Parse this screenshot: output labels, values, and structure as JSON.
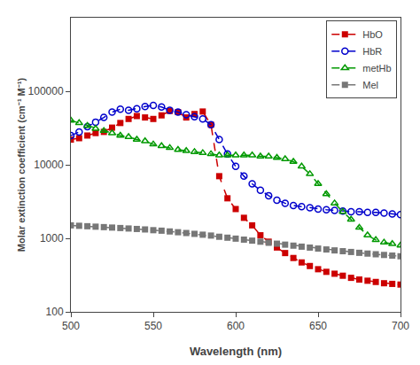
{
  "chart_data": {
    "type": "line",
    "xlabel": "Wavelength (nm)",
    "ylabel": "Molar extinction coefficient (cm⁻¹ M⁻¹)",
    "x": [
      500,
      505,
      510,
      515,
      520,
      525,
      530,
      535,
      540,
      545,
      550,
      555,
      560,
      565,
      570,
      575,
      580,
      585,
      590,
      595,
      600,
      605,
      610,
      615,
      620,
      625,
      630,
      635,
      640,
      645,
      650,
      655,
      660,
      665,
      670,
      675,
      680,
      685,
      690,
      695,
      700
    ],
    "series": [
      {
        "name": "HbO",
        "color": "#cc0000",
        "marker": "square",
        "line_style": "dashed",
        "values": [
          22000,
          23000,
          25000,
          27000,
          28000,
          32000,
          37000,
          42000,
          46000,
          44000,
          42000,
          47000,
          54000,
          52000,
          44000,
          49000,
          53000,
          35000,
          7000,
          3500,
          2500,
          1900,
          1500,
          1100,
          900,
          750,
          630,
          540,
          470,
          420,
          380,
          350,
          330,
          310,
          290,
          275,
          265,
          255,
          245,
          240,
          235
        ]
      },
      {
        "name": "HbR",
        "color": "#0000cc",
        "marker": "circle-open",
        "line_style": "dashed",
        "values": [
          25000,
          28000,
          33000,
          38000,
          44000,
          52000,
          57000,
          55000,
          58000,
          62000,
          64000,
          61000,
          55000,
          52000,
          48000,
          45000,
          42000,
          35000,
          22000,
          14000,
          9500,
          7000,
          5500,
          4500,
          3800,
          3300,
          3000,
          2800,
          2700,
          2600,
          2500,
          2450,
          2400,
          2350,
          2300,
          2300,
          2250,
          2250,
          2200,
          2150,
          2100
        ]
      },
      {
        "name": "metHb",
        "color": "#009900",
        "marker": "triangle-up-open",
        "line_style": "dashed",
        "values": [
          40000,
          37000,
          34000,
          31000,
          29000,
          27000,
          25000,
          24000,
          22000,
          21000,
          19000,
          18000,
          17000,
          16000,
          15500,
          15000,
          14500,
          14000,
          13500,
          13500,
          13500,
          13500,
          13500,
          13000,
          13000,
          12500,
          12000,
          11000,
          9500,
          7500,
          5500,
          4000,
          3000,
          2300,
          1800,
          1400,
          1100,
          950,
          880,
          840,
          800
        ]
      },
      {
        "name": "Mel",
        "color": "#777777",
        "marker": "square",
        "line_style": "dashed",
        "values": [
          1500,
          1480,
          1460,
          1440,
          1420,
          1400,
          1380,
          1360,
          1340,
          1320,
          1290,
          1270,
          1240,
          1210,
          1180,
          1150,
          1120,
          1090,
          1050,
          1020,
          990,
          960,
          930,
          900,
          870,
          845,
          820,
          795,
          770,
          748,
          725,
          705,
          685,
          668,
          652,
          635,
          620,
          607,
          594,
          582,
          570
        ]
      }
    ],
    "xlim": [
      500,
      700
    ],
    "xticks": [
      500,
      550,
      600,
      650,
      700
    ],
    "ylim": [
      100,
      1000000
    ],
    "yticks": [
      100,
      1000,
      10000,
      100000
    ],
    "log": "y",
    "grid": false,
    "legend": "upper right"
  }
}
